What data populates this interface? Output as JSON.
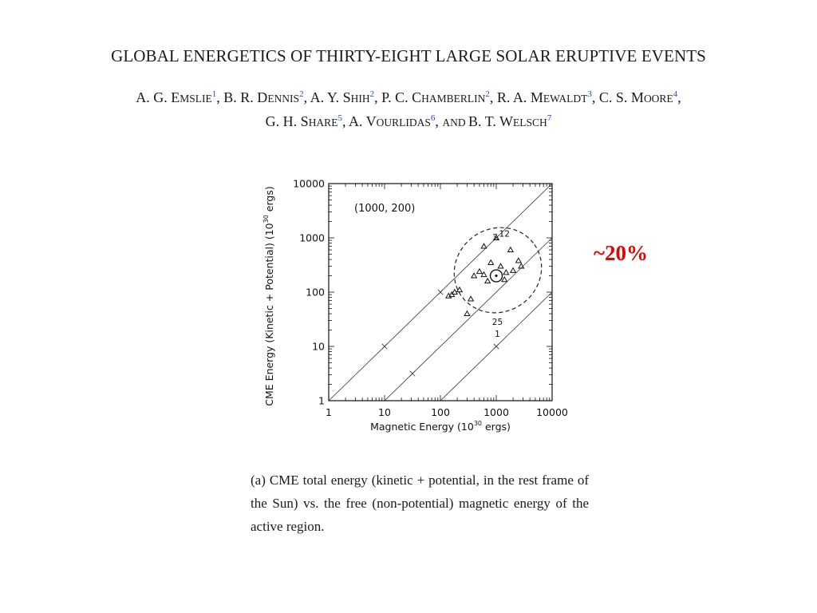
{
  "paper": {
    "title": "GLOBAL ENERGETICS OF THIRTY-EIGHT LARGE SOLAR ERUPTIVE EVENTS",
    "authors_line1": [
      {
        "initials": "A. G. E",
        "rest": "mslie",
        "aff": "1",
        "sep": ", "
      },
      {
        "initials": "B. R. D",
        "rest": "ennis",
        "aff": "2",
        "sep": ", "
      },
      {
        "initials": "A. Y. S",
        "rest": "hih",
        "aff": "2",
        "sep": ", "
      },
      {
        "initials": "P. C. C",
        "rest": "hamberlin",
        "aff": "2",
        "sep": ", "
      },
      {
        "initials": "R. A. M",
        "rest": "ewaldt",
        "aff": "3",
        "sep": ", "
      },
      {
        "initials": "C. S. M",
        "rest": "oore",
        "aff": "4",
        "sep": ","
      }
    ],
    "authors_line2": [
      {
        "initials": "G. H. S",
        "rest": "hare",
        "aff": "5",
        "sep": ", "
      },
      {
        "initials": "A. V",
        "rest": "ourlidas",
        "aff": "6",
        "sep": ", "
      },
      {
        "initials": "",
        "rest": "and ",
        "aff": "",
        "sep": ""
      },
      {
        "initials": "B. T. W",
        "rest": "elsch",
        "aff": "7",
        "sep": ""
      }
    ],
    "caption": "(a) CME total energy (kinetic + potential, in the rest frame of the Sun) vs. the free (non-potential) magnetic energy of the active region.",
    "annotation": "~20%"
  },
  "chart_data": {
    "type": "scatter",
    "xlabel": "Magnetic Energy (10^30 ergs)",
    "ylabel": "CME Energy (Kinetic + Potential) (10^30 ergs)",
    "xscale": "log",
    "yscale": "log",
    "xlim": [
      1,
      10000
    ],
    "ylim": [
      1,
      10000
    ],
    "x_ticks": [
      "1",
      "10",
      "100",
      "1000",
      "10000"
    ],
    "y_ticks": [
      "1",
      "10",
      "100",
      "1000",
      "10000"
    ],
    "annotation": "(1000, 200)",
    "center_point": {
      "x": 1000,
      "y": 200
    },
    "reference_lines": [
      {
        "ratio": 1,
        "markers_x": [
          10,
          100,
          1000
        ]
      },
      {
        "ratio": 0.1,
        "markers_x": [
          31.6
        ]
      },
      {
        "ratio": 0.01,
        "markers_x": [
          1000
        ]
      }
    ],
    "ellipse": {
      "x_center": 1000,
      "y_center": 200
    },
    "point_labels": [
      {
        "text": "12",
        "x": 1400,
        "y": 1050
      },
      {
        "text": "25",
        "x": 1050,
        "y": 25
      },
      {
        "text": "1",
        "x": 1050,
        "y": 15
      }
    ],
    "points": [
      {
        "x": 1000,
        "y": 1000
      },
      {
        "x": 600,
        "y": 700
      },
      {
        "x": 1800,
        "y": 600
      },
      {
        "x": 800,
        "y": 350
      },
      {
        "x": 1200,
        "y": 300
      },
      {
        "x": 2500,
        "y": 380
      },
      {
        "x": 2000,
        "y": 250
      },
      {
        "x": 500,
        "y": 240
      },
      {
        "x": 600,
        "y": 210
      },
      {
        "x": 1500,
        "y": 230
      },
      {
        "x": 400,
        "y": 200
      },
      {
        "x": 1400,
        "y": 170
      },
      {
        "x": 700,
        "y": 160
      },
      {
        "x": 2800,
        "y": 300
      },
      {
        "x": 220,
        "y": 110
      },
      {
        "x": 180,
        "y": 100
      },
      {
        "x": 160,
        "y": 90
      },
      {
        "x": 140,
        "y": 85
      },
      {
        "x": 350,
        "y": 75
      },
      {
        "x": 300,
        "y": 40
      }
    ],
    "grid": false,
    "legend": "none"
  }
}
